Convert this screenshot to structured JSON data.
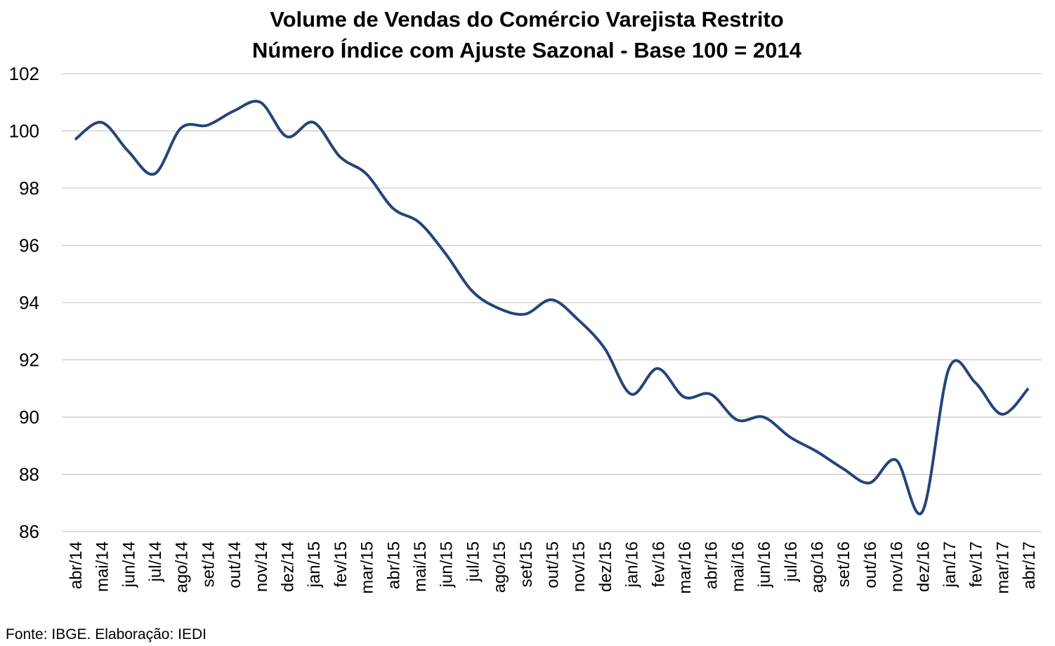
{
  "chart_data": {
    "type": "line",
    "title": "Volume de Vendas do Comércio Varejista Restrito",
    "subtitle": "Número Índice com Ajuste Sazonal - Base 100 = 2014",
    "source": "Fonte: IBGE. Elaboração: IEDI",
    "categories": [
      "abr/14",
      "mai/14",
      "jun/14",
      "jul/14",
      "ago/14",
      "set/14",
      "out/14",
      "nov/14",
      "dez/14",
      "jan/15",
      "fev/15",
      "mar/15",
      "abr/15",
      "mai/15",
      "jun/15",
      "jul/15",
      "ago/15",
      "set/15",
      "out/15",
      "nov/15",
      "dez/15",
      "jan/16",
      "fev/16",
      "mar/16",
      "abr/16",
      "mai/16",
      "jun/16",
      "jul/16",
      "ago/16",
      "set/16",
      "out/16",
      "nov/16",
      "dez/16",
      "jan/17",
      "fev/17",
      "mar/17",
      "abr/17"
    ],
    "series": [
      {
        "name": "Volume de Vendas",
        "color": "#264478",
        "values": [
          99.7,
          100.3,
          99.3,
          98.5,
          100.1,
          100.2,
          100.7,
          101.0,
          99.8,
          100.3,
          99.1,
          98.5,
          97.3,
          96.8,
          95.7,
          94.4,
          93.8,
          93.6,
          94.1,
          93.4,
          92.4,
          90.8,
          91.7,
          90.7,
          90.8,
          89.9,
          90.0,
          89.3,
          88.8,
          88.2,
          87.7,
          88.5,
          86.7,
          91.7,
          91.2,
          90.1,
          91.0
        ]
      }
    ],
    "ylim": [
      86,
      102
    ],
    "yticks": [
      86,
      88,
      90,
      92,
      94,
      96,
      98,
      100,
      102
    ],
    "grid": true
  }
}
